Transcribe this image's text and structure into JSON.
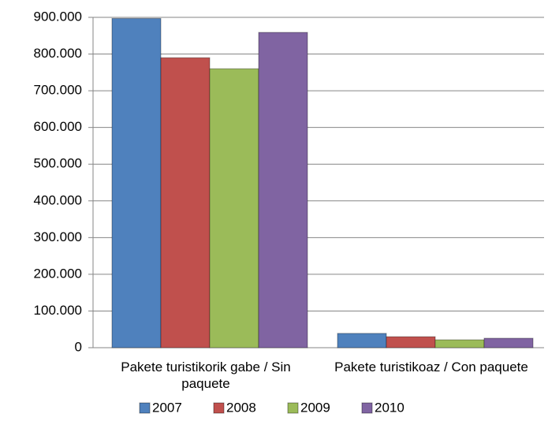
{
  "chart_data": {
    "type": "bar",
    "categories": [
      "Pakete turistikorik gabe / Sin paquete",
      "Pakete turistikoaz / Con paquete"
    ],
    "series": [
      {
        "name": "2007",
        "color": "#4f81bd",
        "values": [
          897000,
          39000
        ]
      },
      {
        "name": "2008",
        "color": "#c0504d",
        "values": [
          790000,
          30000
        ]
      },
      {
        "name": "2009",
        "color": "#9bbb59",
        "values": [
          760000,
          21500
        ]
      },
      {
        "name": "2010",
        "color": "#8064a2",
        "values": [
          859000,
          25800
        ]
      }
    ],
    "ylim": [
      0,
      900000
    ],
    "yticks": [
      0,
      {
        "value": 100000,
        "label": "100.000"
      },
      {
        "value": 200000,
        "label": "200.000"
      },
      {
        "value": 300000,
        "label": "300.000"
      },
      {
        "value": 400000,
        "label": "400.000"
      },
      {
        "value": 500000,
        "label": "500.000"
      },
      {
        "value": 600000,
        "label": "600.000"
      },
      {
        "value": 700000,
        "label": "700.000"
      },
      {
        "value": 800000,
        "label": "800.000"
      },
      {
        "value": 900000,
        "label": "900.000"
      }
    ],
    "grid": true,
    "legend": "bottom"
  }
}
